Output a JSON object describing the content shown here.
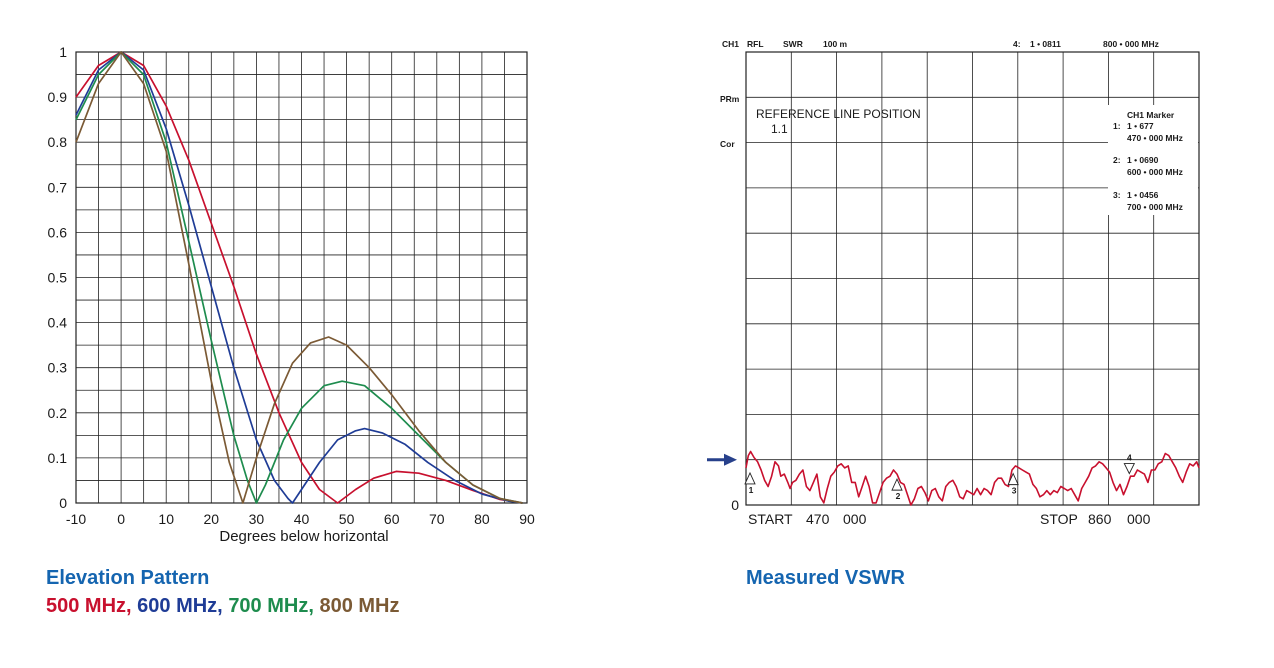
{
  "chart_data": [
    {
      "type": "line",
      "title": "Elevation Pattern",
      "subtitle_parts": [
        "500 MHz",
        "600 MHz",
        "700 MHz",
        "800 MHz"
      ],
      "subtitle_separator": ", ",
      "xlabel": "Degrees below horizontal",
      "ylabel": "",
      "xlim": [
        -10,
        90
      ],
      "ylim": [
        0,
        1
      ],
      "xticks": [
        "-10",
        "0",
        "10",
        "20",
        "30",
        "40",
        "50",
        "60",
        "70",
        "80",
        "90"
      ],
      "yticks": [
        "0",
        "0.1",
        "0.2",
        "0.3",
        "0.4",
        "0.5",
        "0.6",
        "0.7",
        "0.8",
        "0.9",
        "1"
      ],
      "grid": true,
      "series": [
        {
          "name": "500 MHz",
          "color": "#c8102e",
          "x": [
            -10,
            -5,
            0,
            5,
            10,
            15,
            20,
            25,
            30,
            35,
            40,
            44,
            48,
            52,
            56,
            61,
            66,
            72,
            78,
            84,
            89
          ],
          "y": [
            0.9,
            0.97,
            1.0,
            0.97,
            0.88,
            0.76,
            0.62,
            0.48,
            0.33,
            0.2,
            0.09,
            0.03,
            0.0,
            0.03,
            0.055,
            0.07,
            0.066,
            0.05,
            0.028,
            0.008,
            0.0
          ]
        },
        {
          "name": "600 MHz",
          "color": "#1f3c96",
          "x": [
            -10,
            -5,
            0,
            5,
            10,
            15,
            20,
            25,
            30,
            34,
            37,
            38,
            40,
            44,
            48,
            52,
            54,
            58,
            63,
            68,
            74,
            80,
            86,
            89
          ],
          "y": [
            0.86,
            0.96,
            1.0,
            0.96,
            0.83,
            0.66,
            0.48,
            0.3,
            0.14,
            0.05,
            0.01,
            0.0,
            0.03,
            0.09,
            0.14,
            0.16,
            0.165,
            0.155,
            0.13,
            0.09,
            0.05,
            0.02,
            0.004,
            0.0
          ]
        },
        {
          "name": "700 MHz",
          "color": "#1e8c4e",
          "x": [
            -10,
            -5,
            0,
            5,
            10,
            15,
            20,
            25,
            28,
            30,
            32,
            36,
            40,
            45,
            49,
            54,
            60,
            66,
            72,
            78,
            84,
            89
          ],
          "y": [
            0.85,
            0.95,
            1.0,
            0.95,
            0.8,
            0.58,
            0.36,
            0.15,
            0.05,
            0.0,
            0.04,
            0.14,
            0.21,
            0.26,
            0.27,
            0.26,
            0.21,
            0.15,
            0.09,
            0.04,
            0.01,
            0.0
          ]
        },
        {
          "name": "800 MHz",
          "color": "#7b5a35",
          "x": [
            -10,
            -5,
            0,
            5,
            10,
            15,
            20,
            24,
            27,
            30,
            34,
            38,
            42,
            46,
            50,
            55,
            60,
            66,
            72,
            78,
            84,
            89
          ],
          "y": [
            0.8,
            0.93,
            1.0,
            0.93,
            0.78,
            0.53,
            0.27,
            0.09,
            0.0,
            0.1,
            0.22,
            0.31,
            0.355,
            0.368,
            0.35,
            0.3,
            0.24,
            0.16,
            0.09,
            0.04,
            0.01,
            0.0
          ]
        }
      ]
    },
    {
      "type": "line",
      "title": "Measured VSWR",
      "header_labels": [
        "CH1",
        "RFL",
        "SWR",
        "100 m",
        "4:",
        "1 • 0811",
        "800 • 000 MHz"
      ],
      "side_labels": [
        "PRm",
        "Cor"
      ],
      "reference_text": "REFERENCE LINE POSITION",
      "reference_value": "1.1",
      "marker_box_title": "CH1 Marker",
      "markers": [
        {
          "id": "1",
          "label": "1:",
          "value": "1 • 677",
          "freq": "470 • 000 MHz",
          "x": 470
        },
        {
          "id": "2",
          "label": "2:",
          "value": "1 • 0690",
          "freq": "600 • 000 MHz",
          "x": 600
        },
        {
          "id": "3",
          "label": "3:",
          "value": "1 • 0456",
          "freq": "700 • 000 MHz",
          "x": 700
        },
        {
          "id": "4",
          "label": "4:",
          "value": "1 • 0811",
          "freq": "800 • 000 MHz",
          "x": 800
        }
      ],
      "start_label": "START",
      "start_value": "470",
      "start_suffix": "000",
      "stop_label": "STOP",
      "stop_value": "860",
      "stop_suffix": "000",
      "yticks": [
        "0"
      ],
      "reference_arrow_color": "#27408b",
      "xlim": [
        470,
        860
      ],
      "ylim": [
        0,
        11
      ],
      "grid": true,
      "series": [
        {
          "name": "",
          "color": "#c8102e",
          "x": [
            470,
            472,
            474,
            477,
            480,
            483,
            486,
            489,
            492,
            495,
            498,
            500,
            503,
            506,
            508,
            510,
            513,
            516,
            519,
            522,
            525,
            528,
            531,
            534,
            537,
            540,
            543,
            546,
            549,
            552,
            555,
            558,
            561,
            564,
            567,
            570,
            573,
            576,
            579,
            582,
            585,
            588,
            591,
            594,
            597,
            600,
            603,
            606,
            609,
            612,
            615,
            618,
            621,
            624,
            627,
            630,
            633,
            636,
            639,
            642,
            645,
            648,
            651,
            654,
            657,
            660,
            663,
            666,
            669,
            672,
            675,
            678,
            681,
            684,
            687,
            690,
            693,
            696,
            699,
            702,
            705,
            708,
            711,
            714,
            717,
            720,
            723,
            726,
            729,
            732,
            735,
            738,
            741,
            744,
            747,
            750,
            753,
            756,
            759,
            762,
            765,
            768,
            771,
            774,
            777,
            780,
            783,
            786,
            789,
            792,
            795,
            798,
            801,
            804,
            807,
            810,
            813,
            816,
            819,
            822,
            825,
            828,
            831,
            834,
            837,
            840,
            843,
            846,
            849,
            852,
            855,
            858,
            860
          ],
          "y": [
            0.9,
            1.2,
            1.3,
            1.15,
            1.05,
            0.85,
            0.6,
            0.45,
            0.7,
            1.05,
            0.95,
            0.7,
            0.75,
            0.55,
            0.4,
            0.55,
            0.6,
            0.75,
            0.85,
            0.45,
            0.35,
            0.55,
            0.75,
            0.2,
            0.05,
            0.4,
            0.7,
            0.8,
            0.95,
            1.0,
            0.9,
            0.95,
            0.55,
            0.55,
            0.2,
            0.45,
            0.7,
            0.45,
            0.05,
            0.05,
            0.3,
            0.55,
            0.65,
            0.7,
            0.85,
            0.75,
            0.55,
            0.5,
            0.25,
            0.0,
            0.15,
            0.4,
            0.45,
            0.3,
            0.1,
            0.35,
            0.4,
            0.2,
            0.1,
            0.45,
            0.55,
            0.6,
            0.45,
            0.2,
            0.15,
            0.35,
            0.3,
            0.25,
            0.4,
            0.25,
            0.4,
            0.35,
            0.25,
            0.55,
            0.65,
            0.65,
            0.5,
            0.45,
            0.85,
            0.95,
            0.9,
            0.85,
            0.8,
            0.75,
            0.5,
            0.4,
            0.2,
            0.25,
            0.35,
            0.25,
            0.35,
            0.3,
            0.45,
            0.4,
            0.35,
            0.4,
            0.25,
            0.1,
            0.4,
            0.55,
            0.7,
            0.9,
            0.95,
            1.05,
            1.0,
            0.9,
            0.8,
            0.55,
            0.35,
            0.5,
            0.25,
            0.45,
            0.7,
            0.7,
            0.85,
            0.8,
            0.75,
            0.55,
            0.85,
            0.85,
            1.0,
            1.05,
            1.25,
            1.2,
            1.05,
            0.9,
            0.7,
            0.55,
            0.8,
            1.0,
            0.95,
            1.05,
            0.9
          ]
        }
      ]
    }
  ]
}
